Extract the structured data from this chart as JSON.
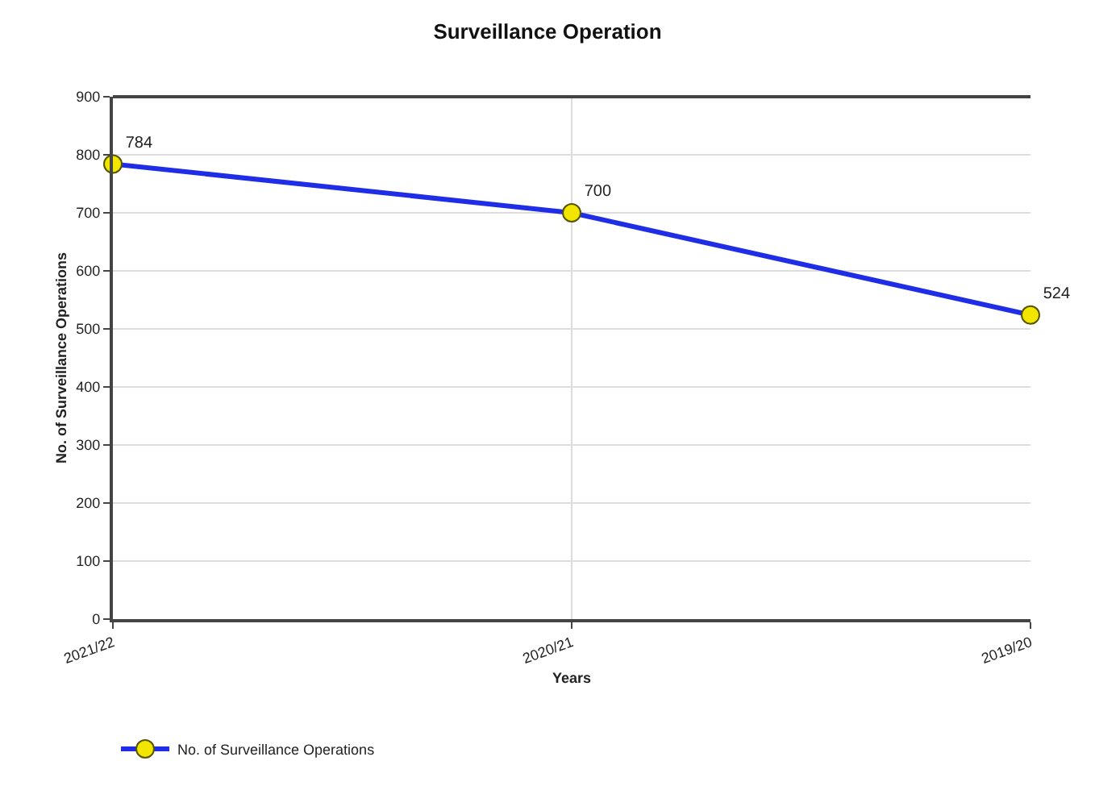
{
  "chart_data": {
    "type": "line",
    "title": "Surveillance Operation",
    "xlabel": "Years",
    "ylabel": "No. of Surveillance Operations",
    "categories": [
      "2021/22",
      "2020/21",
      "2019/20"
    ],
    "series": [
      {
        "name": "No. of Surveillance Operations",
        "color": "#1f2ee6",
        "values": [
          784,
          700,
          524
        ]
      }
    ],
    "ylim": [
      0,
      900
    ],
    "yticks": [
      0,
      100,
      200,
      300,
      400,
      500,
      600,
      700,
      800,
      900
    ],
    "grid": true,
    "legend": "bottom left",
    "marker": "circle",
    "line_style": "solid",
    "data_labels": true
  }
}
